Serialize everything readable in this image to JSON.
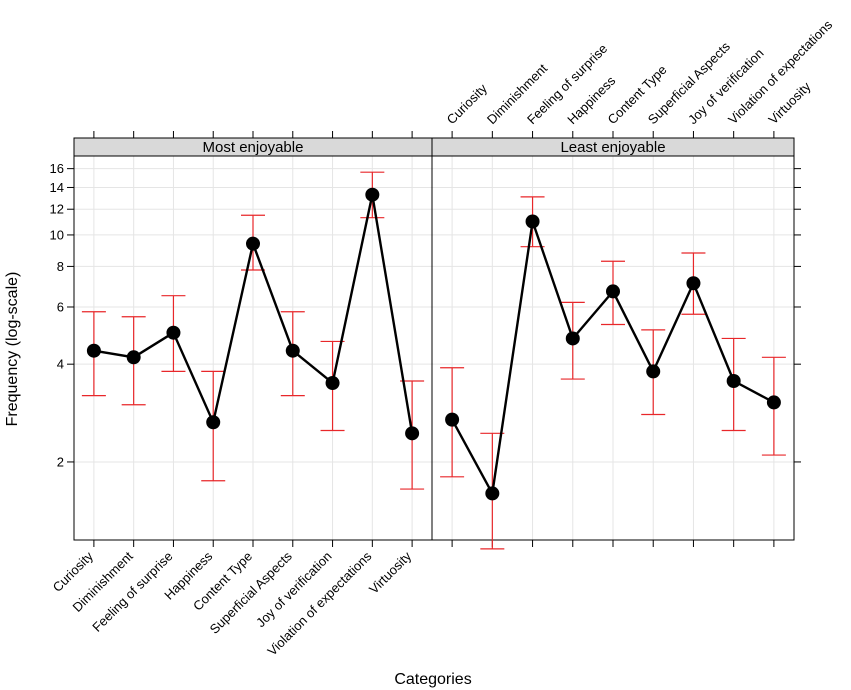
{
  "chart_data": {
    "type": "line",
    "ylabel": "Frequency (log-scale)",
    "xlabel": "Categories",
    "y_scale": "log",
    "ylim": [
      1.15,
      17.5
    ],
    "y_ticks": [
      2,
      4,
      6,
      8,
      10,
      12,
      14,
      16
    ],
    "categories": [
      "Curiosity",
      "Diminishment",
      "Feeling of surprise",
      "Happiness",
      "Content Type",
      "Superficial Aspects",
      "Joy of verification",
      "Violation of expectations",
      "Virtuosity"
    ],
    "marker_color": "#000000",
    "line_color": "#000000",
    "error_color": "#e8272a",
    "panels": [
      {
        "title": "Most enjoyable",
        "series": [
          {
            "category": "Curiosity",
            "value": 4.4,
            "lower": 3.2,
            "upper": 5.8
          },
          {
            "category": "Diminishment",
            "value": 4.2,
            "lower": 3.0,
            "upper": 5.6
          },
          {
            "category": "Feeling of surprise",
            "value": 5.0,
            "lower": 3.8,
            "upper": 6.5
          },
          {
            "category": "Happiness",
            "value": 2.65,
            "lower": 1.75,
            "upper": 3.8
          },
          {
            "category": "Content Type",
            "value": 9.4,
            "lower": 7.8,
            "upper": 11.5
          },
          {
            "category": "Superficial Aspects",
            "value": 4.4,
            "lower": 3.2,
            "upper": 5.8
          },
          {
            "category": "Joy of verification",
            "value": 3.5,
            "lower": 2.5,
            "upper": 4.7
          },
          {
            "category": "Violation of expectations",
            "value": 13.3,
            "lower": 11.3,
            "upper": 15.6
          },
          {
            "category": "Virtuosity",
            "value": 2.45,
            "lower": 1.65,
            "upper": 3.55
          }
        ]
      },
      {
        "title": "Least enjoyable",
        "series": [
          {
            "category": "Curiosity",
            "value": 2.7,
            "lower": 1.8,
            "upper": 3.9
          },
          {
            "category": "Diminishment",
            "value": 1.6,
            "lower": 1.08,
            "upper": 2.45
          },
          {
            "category": "Feeling of surprise",
            "value": 11.0,
            "lower": 9.2,
            "upper": 13.1
          },
          {
            "category": "Happiness",
            "value": 4.8,
            "lower": 3.6,
            "upper": 6.2
          },
          {
            "category": "Content Type",
            "value": 6.7,
            "lower": 5.3,
            "upper": 8.3
          },
          {
            "category": "Superficial Aspects",
            "value": 3.8,
            "lower": 2.8,
            "upper": 5.1
          },
          {
            "category": "Joy of verification",
            "value": 7.1,
            "lower": 5.7,
            "upper": 8.8
          },
          {
            "category": "Violation of expectations",
            "value": 3.55,
            "lower": 2.5,
            "upper": 4.8
          },
          {
            "category": "Virtuosity",
            "value": 3.05,
            "lower": 2.1,
            "upper": 4.2
          }
        ]
      }
    ]
  }
}
